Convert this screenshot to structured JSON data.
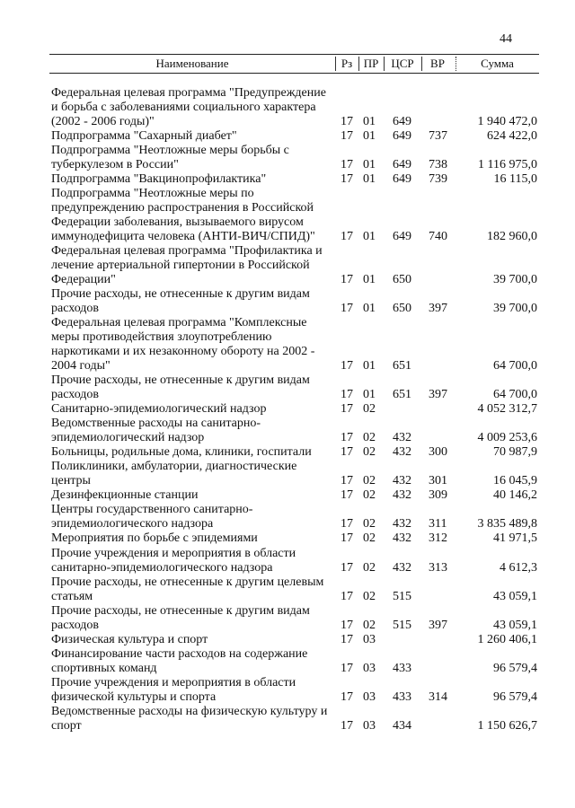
{
  "page_number": "44",
  "header": {
    "name": "Наименование",
    "rz": "Рз",
    "pr": "ПР",
    "csr": "ЦСР",
    "vr": "ВР",
    "sum": "Сумма"
  },
  "rows": [
    {
      "name": "Федеральная целевая программа \"Предупреждение\nи борьба с заболеваниями социального характера\n(2002 - 2006 годы)\"",
      "rz": "17",
      "pr": "01",
      "csr": "649",
      "vr": "",
      "sum": "1 940 472,0"
    },
    {
      "name": "Подпрограмма \"Сахарный диабет\"",
      "rz": "17",
      "pr": "01",
      "csr": "649",
      "vr": "737",
      "sum": "624 422,0"
    },
    {
      "name": "Подпрограмма \"Неотложные меры борьбы с\nтуберкулезом в России\"",
      "rz": "17",
      "pr": "01",
      "csr": "649",
      "vr": "738",
      "sum": "1 116 975,0"
    },
    {
      "name": "Подпрограмма \"Вакцинопрофилактика\"",
      "rz": "17",
      "pr": "01",
      "csr": "649",
      "vr": "739",
      "sum": "16 115,0"
    },
    {
      "name": "Подпрограмма \"Неотложные меры по\nпредупреждению распространения в Российской\nФедерации заболевания, вызываемого вирусом\nиммунодефицита человека (АНТИ-ВИЧ/СПИД)\"",
      "rz": "17",
      "pr": "01",
      "csr": "649",
      "vr": "740",
      "sum": "182 960,0"
    },
    {
      "name": "Федеральная целевая программа \"Профилактика и\nлечение артериальной гипертонии в Российской\nФедерации\"",
      "rz": "17",
      "pr": "01",
      "csr": "650",
      "vr": "",
      "sum": "39 700,0"
    },
    {
      "name": "Прочие расходы, не отнесенные к другим видам\nрасходов",
      "rz": "17",
      "pr": "01",
      "csr": "650",
      "vr": "397",
      "sum": "39 700,0"
    },
    {
      "name": "Федеральная целевая программа \"Комплексные\nмеры противодействия злоупотреблению\nнаркотиками и их незаконному обороту на 2002 -\n2004 годы\"",
      "rz": "17",
      "pr": "01",
      "csr": "651",
      "vr": "",
      "sum": "64 700,0"
    },
    {
      "name": "Прочие расходы, не отнесенные к другим видам\nрасходов",
      "rz": "17",
      "pr": "01",
      "csr": "651",
      "vr": "397",
      "sum": "64 700,0"
    },
    {
      "name": "Санитарно-эпидемиологический надзор",
      "rz": "17",
      "pr": "02",
      "csr": "",
      "vr": "",
      "sum": "4 052 312,7"
    },
    {
      "name": "Ведомственные расходы на санитарно-\nэпидемиологический надзор",
      "rz": "17",
      "pr": "02",
      "csr": "432",
      "vr": "",
      "sum": "4 009 253,6"
    },
    {
      "name": "Больницы, родильные дома, клиники, госпитали",
      "rz": "17",
      "pr": "02",
      "csr": "432",
      "vr": "300",
      "sum": "70 987,9"
    },
    {
      "name": "Поликлиники, амбулатории, диагностические\nцентры",
      "rz": "17",
      "pr": "02",
      "csr": "432",
      "vr": "301",
      "sum": "16 045,9"
    },
    {
      "name": "Дезинфекционные станции",
      "rz": "17",
      "pr": "02",
      "csr": "432",
      "vr": "309",
      "sum": "40 146,2"
    },
    {
      "name": "Центры государственного санитарно-\nэпидемиологического надзора",
      "rz": "17",
      "pr": "02",
      "csr": "432",
      "vr": "311",
      "sum": "3 835 489,8"
    },
    {
      "name": "Мероприятия по борьбе с эпидемиями",
      "rz": "17",
      "pr": "02",
      "csr": "432",
      "vr": "312",
      "sum": "41 971,5"
    },
    {
      "name": "Прочие учреждения и мероприятия в области\nсанитарно-эпидемиологического надзора",
      "rz": "17",
      "pr": "02",
      "csr": "432",
      "vr": "313",
      "sum": "4 612,3"
    },
    {
      "name": "Прочие расходы, не отнесенные к другим целевым\nстатьям",
      "rz": "17",
      "pr": "02",
      "csr": "515",
      "vr": "",
      "sum": "43 059,1"
    },
    {
      "name": "Прочие расходы, не отнесенные к другим видам\nрасходов",
      "rz": "17",
      "pr": "02",
      "csr": "515",
      "vr": "397",
      "sum": "43 059,1"
    },
    {
      "name": "Физическая культура и спорт",
      "rz": "17",
      "pr": "03",
      "csr": "",
      "vr": "",
      "sum": "1 260 406,1"
    },
    {
      "name": "Финансирование части расходов на содержание\nспортивных команд",
      "rz": "17",
      "pr": "03",
      "csr": "433",
      "vr": "",
      "sum": "96 579,4"
    },
    {
      "name": "Прочие учреждения и мероприятия в области\nфизической культуры и спорта",
      "rz": "17",
      "pr": "03",
      "csr": "433",
      "vr": "314",
      "sum": "96 579,4"
    },
    {
      "name": "Ведомственные расходы на физическую культуру и\nспорт",
      "rz": "17",
      "pr": "03",
      "csr": "434",
      "vr": "",
      "sum": "1 150 626,7"
    }
  ]
}
